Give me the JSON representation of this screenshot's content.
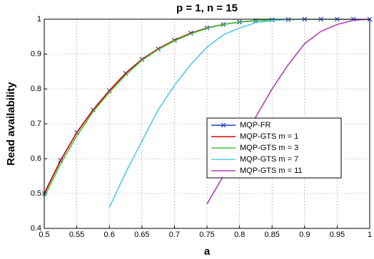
{
  "chart_data": {
    "type": "line",
    "title": "p = 1, n = 15",
    "xlabel": "a",
    "ylabel": "Read availability",
    "x": [
      0.5,
      0.525,
      0.55,
      0.575,
      0.6,
      0.625,
      0.65,
      0.675,
      0.7,
      0.725,
      0.75,
      0.775,
      0.8,
      0.825,
      0.85,
      0.875,
      0.9,
      0.925,
      0.95,
      0.975,
      1
    ],
    "series": [
      {
        "name": "MQP-FR",
        "color": "#1f3cc8",
        "marker": "x",
        "values": [
          0.5,
          0.595,
          0.675,
          0.74,
          0.795,
          0.845,
          0.885,
          0.915,
          0.94,
          0.96,
          0.975,
          0.985,
          0.992,
          0.996,
          0.998,
          0.999,
          1,
          1,
          1,
          1,
          1
        ]
      },
      {
        "name": "MQP-GTS m = 1",
        "color": "#e00000",
        "values": [
          0.5,
          0.595,
          0.675,
          0.74,
          0.795,
          0.845,
          0.885,
          0.915,
          0.94,
          0.96,
          0.975,
          0.985,
          0.992,
          0.996,
          0.998,
          0.999,
          1,
          1,
          1,
          1,
          1
        ]
      },
      {
        "name": "MQP-GTS m = 3",
        "color": "#33cc33",
        "values": [
          0.49,
          0.585,
          0.665,
          0.735,
          0.79,
          0.84,
          0.882,
          0.913,
          0.938,
          0.958,
          0.974,
          0.985,
          0.992,
          0.996,
          0.998,
          0.999,
          1,
          1,
          1,
          1,
          1
        ]
      },
      {
        "name": "MQP-GTS m = 7",
        "color": "#55c8e8",
        "values": [
          null,
          null,
          null,
          null,
          0.46,
          0.56,
          0.65,
          0.74,
          0.81,
          0.87,
          0.92,
          0.955,
          0.975,
          0.99,
          0.996,
          0.999,
          1,
          1,
          1,
          1,
          1
        ]
      },
      {
        "name": "MQP-GTS m = 11",
        "color": "#b040b0",
        "values": [
          null,
          null,
          null,
          null,
          null,
          null,
          null,
          null,
          null,
          null,
          0.47,
          0.55,
          0.63,
          0.72,
          0.8,
          0.87,
          0.93,
          0.965,
          0.985,
          0.997,
          1
        ]
      }
    ],
    "xlim": [
      0.5,
      1
    ],
    "xticks": [
      0.5,
      0.55,
      0.6,
      0.65,
      0.7,
      0.75,
      0.8,
      0.85,
      0.9,
      0.95,
      1
    ],
    "ylim": [
      0.4,
      1
    ],
    "yticks": [
      0.4,
      0.5,
      0.6,
      0.7,
      0.8,
      0.9,
      1
    ],
    "grid": true,
    "legend": "lower right"
  }
}
